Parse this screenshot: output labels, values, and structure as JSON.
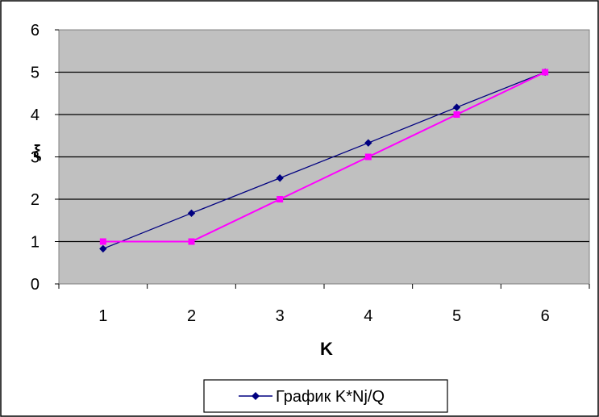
{
  "chart_data": {
    "type": "line",
    "x": [
      1,
      2,
      3,
      4,
      5,
      6
    ],
    "xlabel": "K",
    "ylabel": "ξ",
    "xlim": [
      0.5,
      6.5
    ],
    "ylim": [
      0,
      6
    ],
    "yticks": [
      0,
      1,
      2,
      3,
      4,
      5,
      6
    ],
    "xticks": [
      1,
      2,
      3,
      4,
      5,
      6
    ],
    "grid": true,
    "legend_position": "bottom",
    "plot_background": "#c0c0c0",
    "series": [
      {
        "name": "График K*Nj/Q",
        "values": [
          0.83,
          1.67,
          2.5,
          3.33,
          4.17,
          5.0
        ],
        "color": "#000080",
        "marker": "diamond"
      },
      {
        "name": "",
        "values": [
          1,
          1,
          2,
          3,
          4,
          5
        ],
        "color": "#ff00ff",
        "marker": "square"
      }
    ]
  }
}
